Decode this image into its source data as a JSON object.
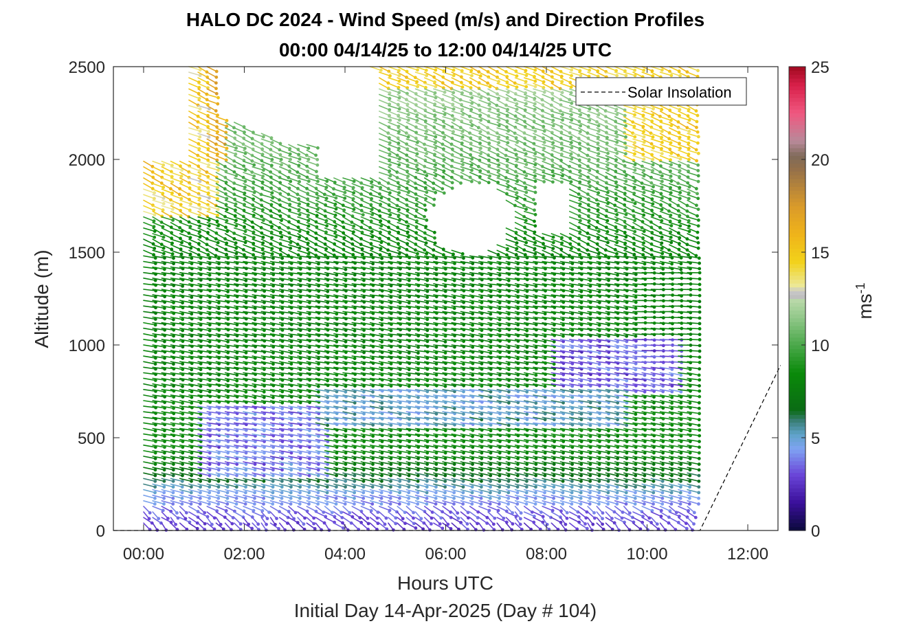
{
  "title_line1": "HALO DC 2024 - Wind Speed (m/s) and Direction Profiles",
  "title_line2": "00:00 04/14/25 to 12:00 04/14/25  UTC",
  "chart_data": {
    "type": "quiver",
    "xlabel": "Hours UTC",
    "xsublabel": "Initial Day 14-Apr-2025 (Day # 104)",
    "ylabel": "Altitude (m)",
    "xlim": [
      -0.6,
      12.6
    ],
    "ylim": [
      0,
      2500
    ],
    "xticks": [
      0,
      2,
      4,
      6,
      8,
      10,
      12
    ],
    "xtick_labels": [
      "00:00",
      "02:00",
      "04:00",
      "06:00",
      "08:00",
      "10:00",
      "12:00"
    ],
    "yticks": [
      0,
      500,
      1000,
      1500,
      2000,
      2500
    ],
    "ytick_labels": [
      "0",
      "500",
      "1000",
      "1500",
      "2000",
      "2500"
    ],
    "colorbar": {
      "label": "ms",
      "label_exponent": "-1",
      "range": [
        0,
        25
      ],
      "ticks": [
        0,
        5,
        10,
        15,
        20,
        25
      ],
      "tick_labels": [
        "0",
        "5",
        "10",
        "15",
        "20",
        "25"
      ],
      "colors": [
        {
          "v": 0,
          "c": "#0a0a3a"
        },
        {
          "v": 1.5,
          "c": "#3a0f9a"
        },
        {
          "v": 3,
          "c": "#6a45d8"
        },
        {
          "v": 4.4,
          "c": "#7fa3f2"
        },
        {
          "v": 5.2,
          "c": "#5ea3c8"
        },
        {
          "v": 5.9,
          "c": "#3b7f7a"
        },
        {
          "v": 6.5,
          "c": "#0a6b14"
        },
        {
          "v": 8.5,
          "c": "#0a8a0a"
        },
        {
          "v": 10,
          "c": "#4aa84a"
        },
        {
          "v": 11.5,
          "c": "#92c88a"
        },
        {
          "v": 12.4,
          "c": "#b8d8a8"
        },
        {
          "v": 12.6,
          "c": "#bfbfbf"
        },
        {
          "v": 12.9,
          "c": "#c8c8c8"
        },
        {
          "v": 13.2,
          "c": "#ece898"
        },
        {
          "v": 14.5,
          "c": "#f2d21a"
        },
        {
          "v": 16,
          "c": "#efb31a"
        },
        {
          "v": 17.5,
          "c": "#d99a2a"
        },
        {
          "v": 19.5,
          "c": "#94704a"
        },
        {
          "v": 20.2,
          "c": "#7f6a5a"
        },
        {
          "v": 21,
          "c": "#b88a9a"
        },
        {
          "v": 22.5,
          "c": "#f05880"
        },
        {
          "v": 24,
          "c": "#d8204a"
        },
        {
          "v": 25,
          "c": "#a00a20"
        }
      ]
    },
    "legend": {
      "position": "top-right",
      "entries": [
        "Solar Insolation"
      ]
    },
    "series": [
      {
        "name": "Solar Insolation",
        "style": "dashed",
        "x": [
          -0.6,
          11.05,
          12.65
        ],
        "y": [
          0,
          0,
          890
        ]
      }
    ],
    "quiver": {
      "x_start": 0.0,
      "x_step": 0.18,
      "x_end": 10.8,
      "y_start": 40,
      "y_step": 30,
      "y_end": 2500,
      "speed_profile_by_altitude": [
        {
          "alt": 0,
          "speed": 2.5
        },
        {
          "alt": 120,
          "speed": 3.5
        },
        {
          "alt": 200,
          "speed": 4.5
        },
        {
          "alt": 300,
          "speed": 6.5
        },
        {
          "alt": 450,
          "speed": 8.5
        },
        {
          "alt": 1000,
          "speed": 8.0
        },
        {
          "alt": 1500,
          "speed": 8.0
        },
        {
          "alt": 2000,
          "speed": 10.5
        },
        {
          "alt": 2500,
          "speed": 12
        }
      ],
      "note_region_low_speed": {
        "alt_range": [
          750,
          1050
        ],
        "time_range": [
          8.0,
          10.6
        ],
        "speed": 2.5
      },
      "note_region_high_speed": {
        "alt_range": [
          2000,
          2500
        ],
        "time_range": [
          4.5,
          10.8
        ],
        "speed": 14
      }
    }
  }
}
